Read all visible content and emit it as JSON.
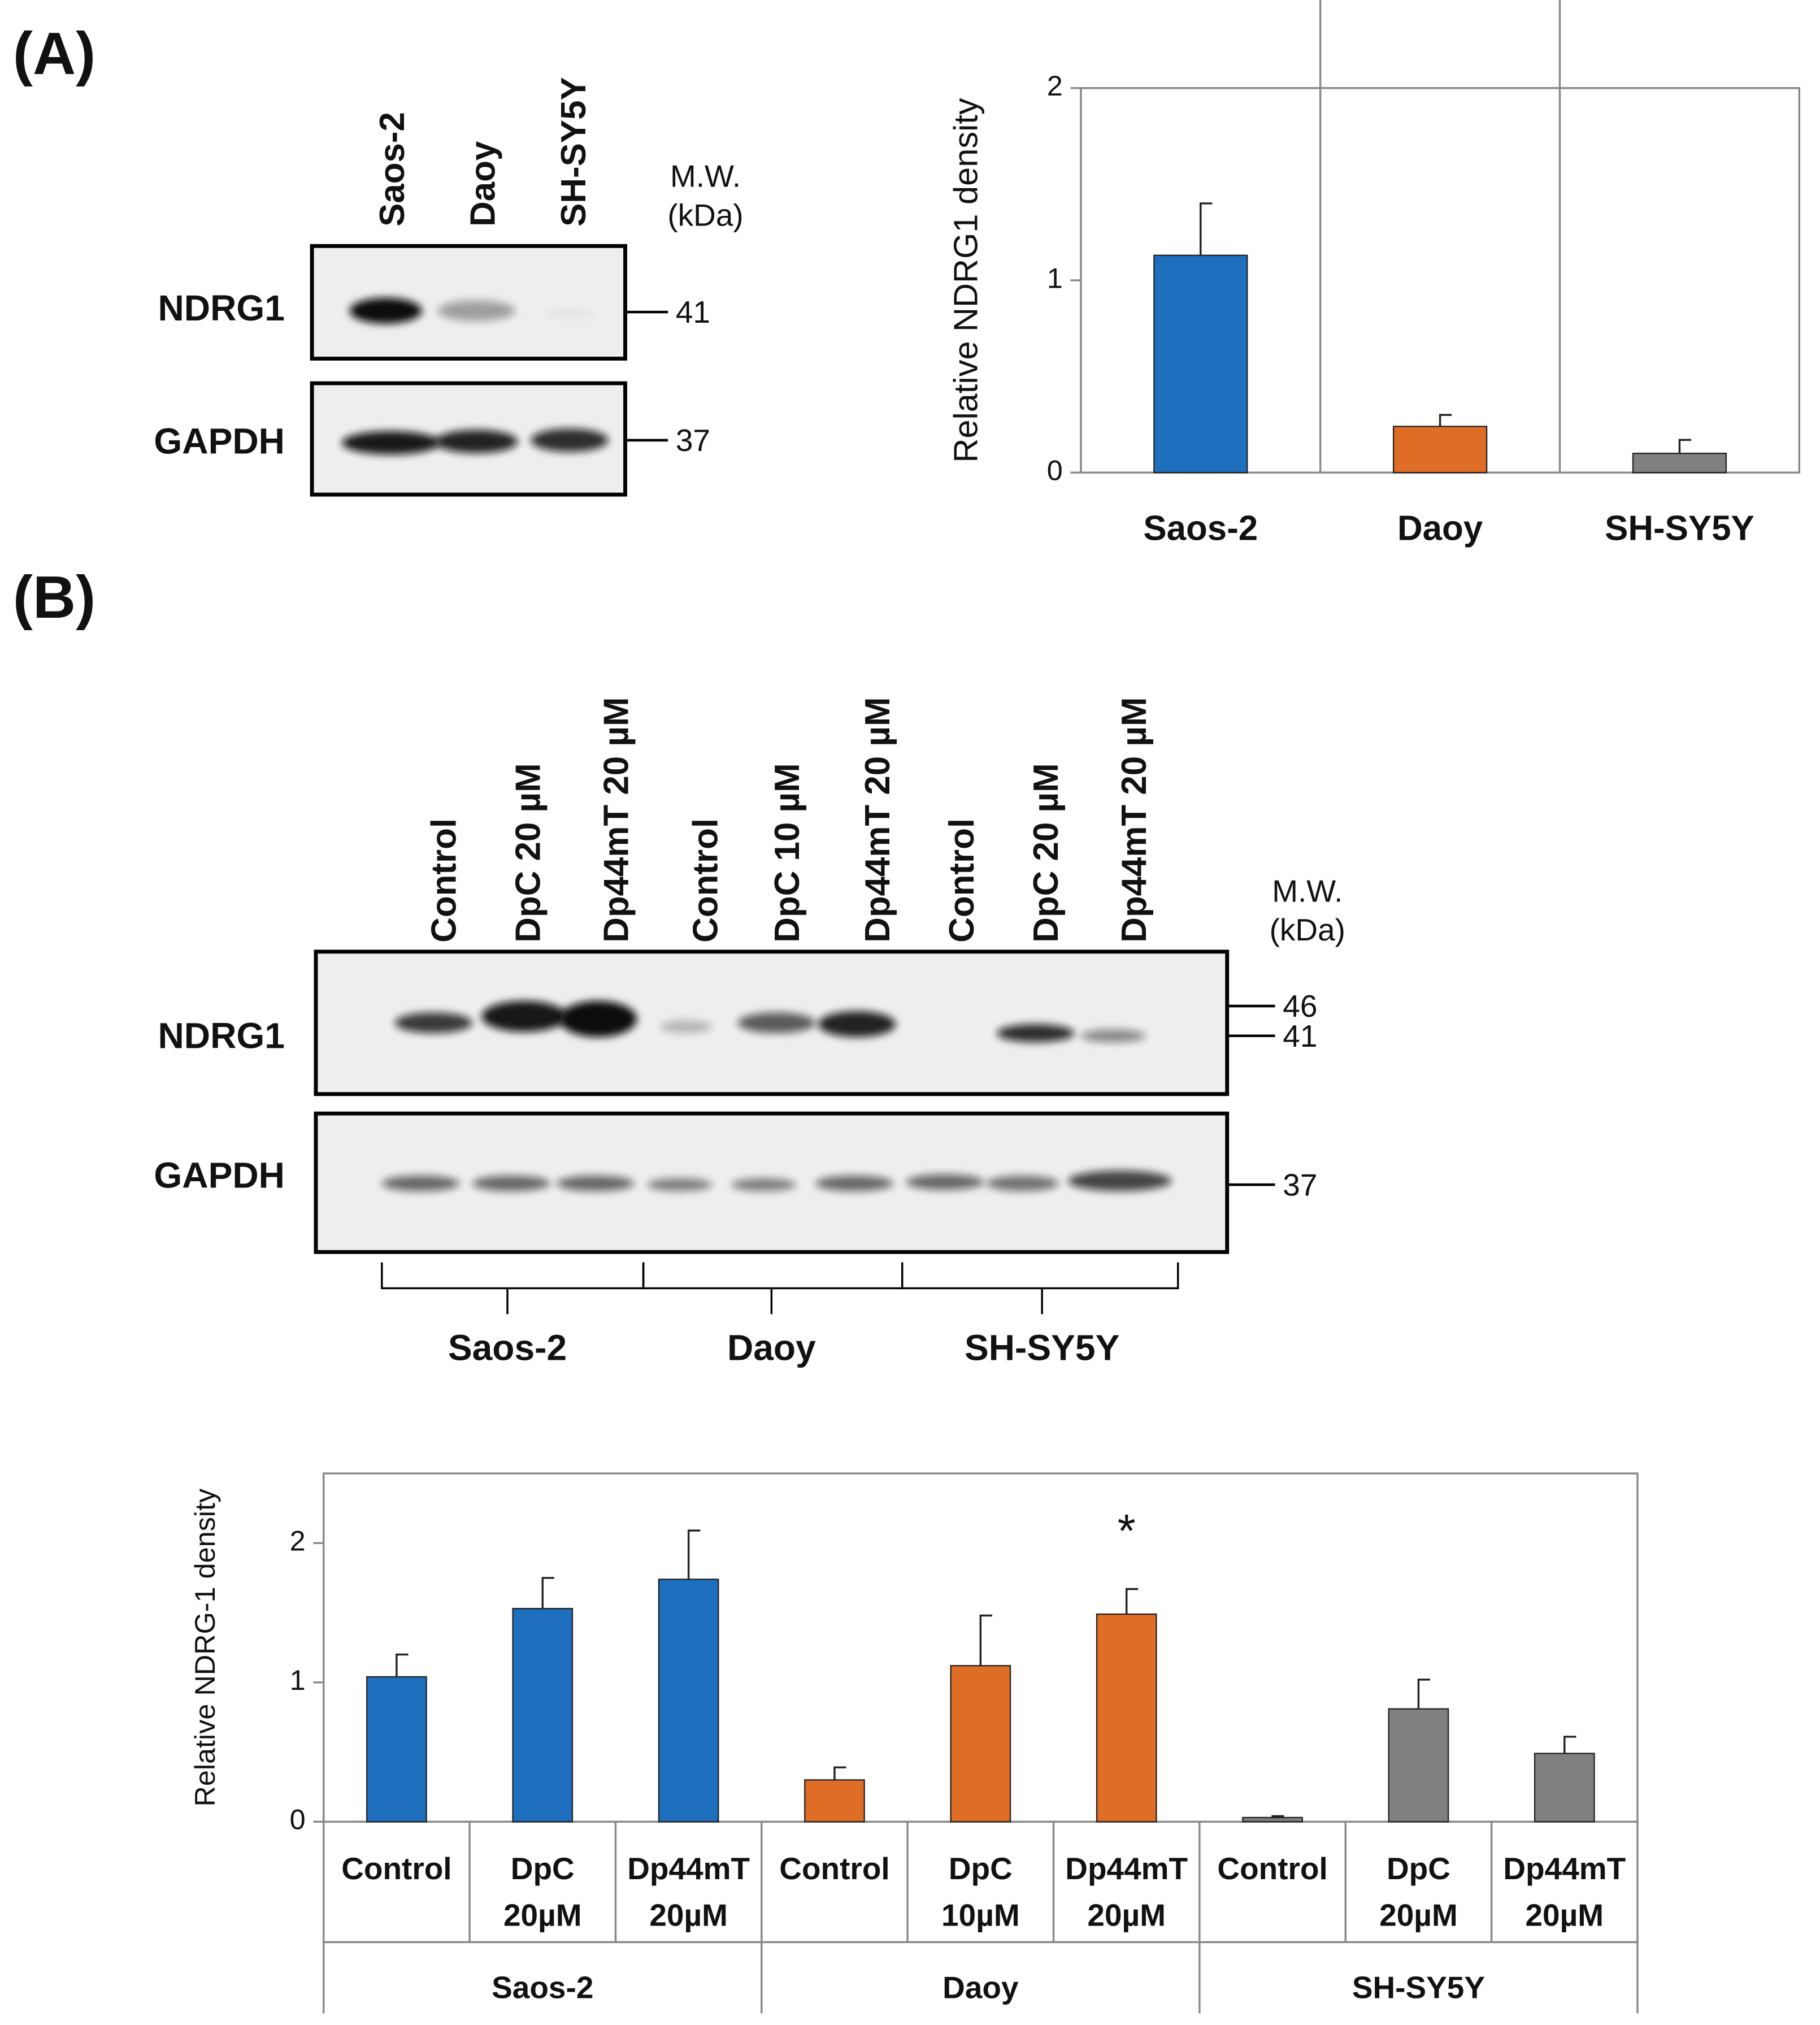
{
  "panel_labels": [
    "(A)",
    "(B)"
  ],
  "blot_a": {
    "lanes": [
      "Saos-2",
      "Daoy",
      "SH-SY5Y"
    ],
    "rows": [
      "NDRG1",
      "GAPDH"
    ],
    "mw_title": [
      "M.W.",
      "(kDa)"
    ],
    "markers": [
      41,
      37
    ]
  },
  "blot_b": {
    "lanes": [
      "Control",
      "DpC 20 µM",
      "Dp44mT 20 µM",
      "Control",
      "DpC 10 µM",
      "Dp44mT 20 µM",
      "Control",
      "DpC 20 µM",
      "Dp44mT 20 µM"
    ],
    "rows": [
      "NDRG1",
      "GAPDH"
    ],
    "mw_title": [
      "M.W.",
      "(kDa)"
    ],
    "markers": [
      46,
      41,
      37
    ],
    "groups": [
      "Saos-2",
      "Daoy",
      "SH-SY5Y"
    ]
  },
  "chart_data": [
    {
      "type": "bar",
      "y_label": "Relative NDRG1 density",
      "categories": [
        "Saos-2",
        "Daoy",
        "SH-SY5Y"
      ],
      "values": [
        1.13,
        0.24,
        0.1
      ],
      "errors": [
        0.27,
        0.06,
        0.07
      ],
      "colors": [
        "#1f6fbf",
        "#e06d26",
        "#808080"
      ],
      "ylim": [
        0,
        2
      ],
      "yticks": [
        0,
        1,
        2
      ]
    },
    {
      "type": "bar",
      "y_label": "Relative NDRG-1 density",
      "categories": [
        [
          "Control"
        ],
        [
          "DpC",
          "20µM"
        ],
        [
          "Dp44mT",
          "20µM"
        ],
        [
          "Control"
        ],
        [
          "DpC",
          "10µM"
        ],
        [
          "Dp44mT",
          "20µM"
        ],
        [
          "Control"
        ],
        [
          "DpC",
          "20µM"
        ],
        [
          "Dp44mT",
          "20µM"
        ]
      ],
      "groups": [
        "Saos-2",
        "Daoy",
        "SH-SY5Y"
      ],
      "values": [
        1.04,
        1.53,
        1.74,
        0.3,
        1.12,
        1.49,
        0.03,
        0.81,
        0.49
      ],
      "errors": [
        0.16,
        0.22,
        0.35,
        0.09,
        0.36,
        0.18,
        0.01,
        0.21,
        0.12
      ],
      "colors": [
        "#1f6fbf",
        "#e06d26",
        "#808080"
      ],
      "ylim": [
        0,
        2.5
      ],
      "yticks": [
        0,
        1,
        2
      ],
      "annotations": [
        {
          "text": "*",
          "category": 5
        }
      ]
    }
  ]
}
